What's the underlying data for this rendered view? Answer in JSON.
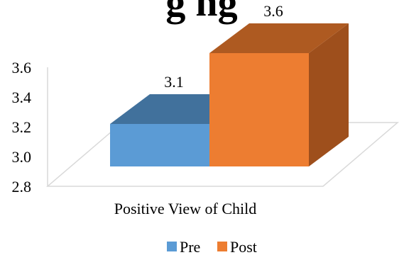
{
  "chart_data": {
    "type": "bar",
    "title": "",
    "title_fragment": "...g... ...ng...",
    "categories": [
      "Positive View of Child"
    ],
    "series": [
      {
        "name": "Pre",
        "values": [
          3.1
        ],
        "color": "#5b9bd5",
        "color_top": "#41719c",
        "color_side": "#41719c"
      },
      {
        "name": "Post",
        "values": [
          3.6
        ],
        "color": "#ed7d31",
        "color_top": "#ae5a21",
        "color_side": "#9e4f1c"
      }
    ],
    "data_labels": [
      "3.1",
      "3.6"
    ],
    "y_ticks": [
      "2.8",
      "3.0",
      "3.2",
      "3.4",
      "3.6"
    ],
    "y_tick_values": [
      2.8,
      3.0,
      3.2,
      3.4,
      3.6
    ],
    "ylim": [
      2.8,
      3.6
    ],
    "xlabel": "",
    "ylabel": "",
    "three_d": true,
    "grid": false,
    "legend_position": "bottom"
  }
}
